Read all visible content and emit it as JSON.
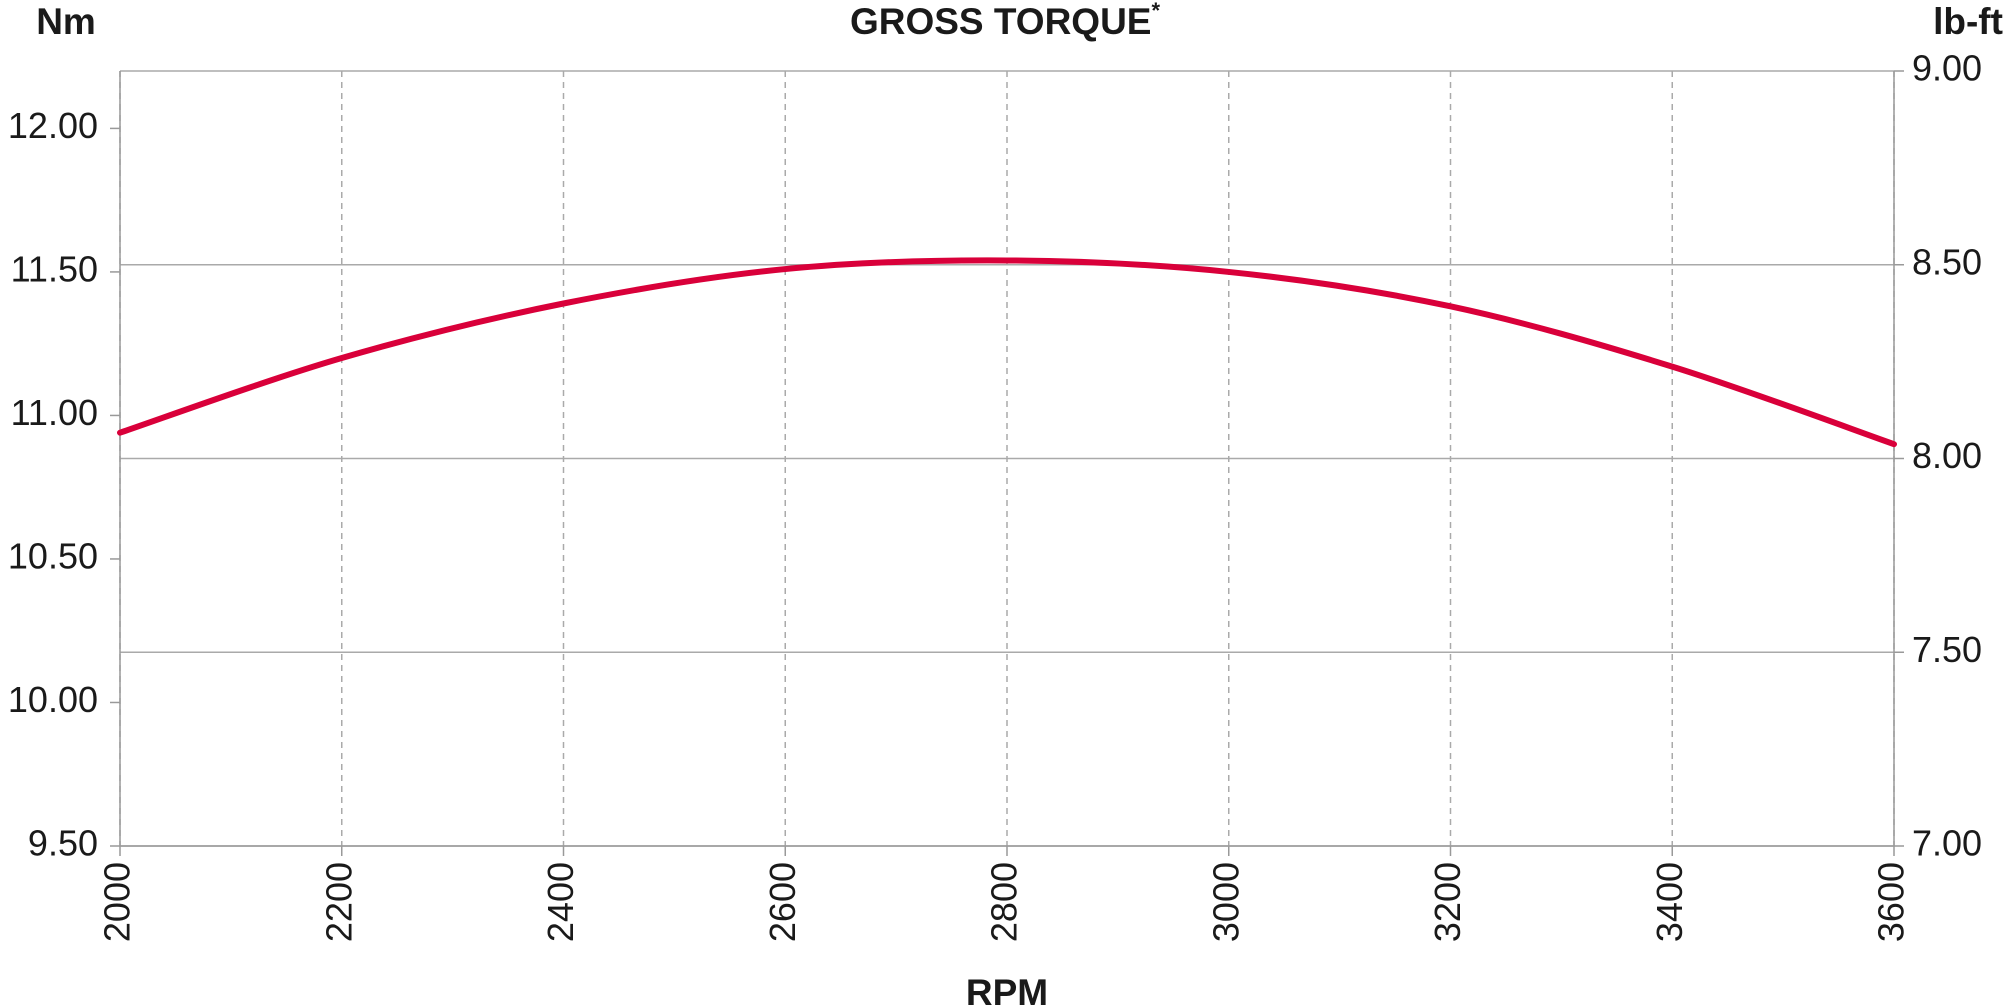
{
  "chart_data": {
    "type": "line",
    "title": "GROSS TORQUE",
    "title_superscript": "*",
    "y_label": "Nm",
    "y2_label": "lb-ft",
    "x_label": "RPM",
    "x": [
      2000,
      2200,
      2400,
      2600,
      2800,
      3000,
      3200,
      3400,
      3600
    ],
    "series": [
      {
        "name": "Gross torque",
        "color": "#d9003a",
        "values": [
          10.94,
          11.2,
          11.39,
          11.51,
          11.54,
          11.5,
          11.38,
          11.17,
          10.9
        ]
      }
    ],
    "xlim": [
      2000,
      3600
    ],
    "xticks": [
      2000,
      2200,
      2400,
      2600,
      2800,
      3000,
      3200,
      3400,
      3600
    ],
    "ylim": [
      9.5,
      12.2
    ],
    "yticks": [
      {
        "value": 9.5,
        "label": "9.50"
      },
      {
        "value": 10,
        "label": "10.00"
      },
      {
        "value": 10.5,
        "label": "10.50"
      },
      {
        "value": 11,
        "label": "11.00"
      },
      {
        "value": 11.5,
        "label": "11.50"
      },
      {
        "value": 12,
        "label": "12.00"
      }
    ],
    "y2lim": [
      7,
      9
    ],
    "y2ticks": [
      {
        "value": 7,
        "label": "7.00"
      },
      {
        "value": 7.5,
        "label": "7.50"
      },
      {
        "value": 8,
        "label": "8.00"
      },
      {
        "value": 8.5,
        "label": "8.50"
      },
      {
        "value": 9,
        "label": "9.00"
      }
    ],
    "grid": true
  }
}
